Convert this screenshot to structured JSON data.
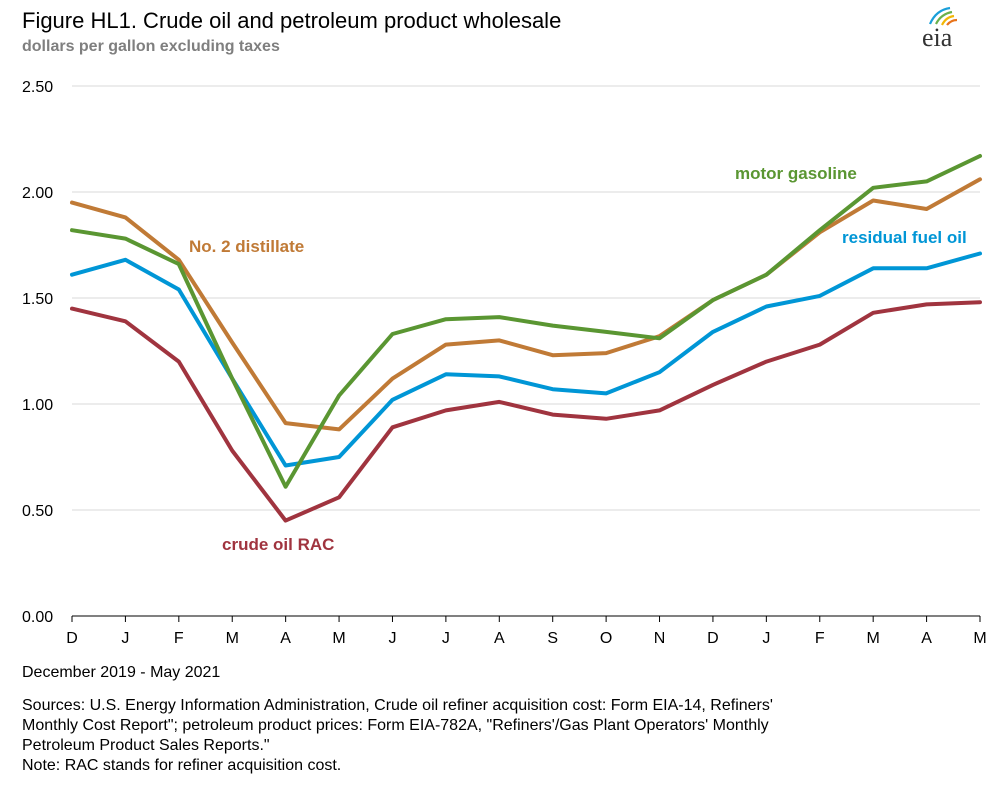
{
  "title": "Figure HL1.  Crude oil and petroleum product wholesale",
  "subtitle": "dollars per gallon excluding taxes",
  "logo_text": "eia",
  "period": "December 2019 - May 2021",
  "sources": [
    "Sources:  U.S. Energy Information Administration, Crude oil refiner acquisition cost:  Form EIA-14, Refiners'",
    "Monthly  Cost Report\"; petroleum product prices:  Form EIA-782A, \"Refiners'/Gas Plant Operators' Monthly",
    "Petroleum Product Sales Reports.\"",
    "Note:  RAC stands for refiner acquisition cost."
  ],
  "chart_data": {
    "type": "line",
    "categories": [
      "D",
      "J",
      "F",
      "M",
      "A",
      "M",
      "J",
      "J",
      "A",
      "S",
      "O",
      "N",
      "D",
      "J",
      "F",
      "M",
      "A",
      "M"
    ],
    "ylim": [
      0,
      2.5
    ],
    "yticks": [
      "0.00",
      "0.50",
      "1.00",
      "1.50",
      "2.00",
      "2.50"
    ],
    "grid": true,
    "series": [
      {
        "name": "motor gasoline",
        "color": "#5a9632",
        "values": [
          1.82,
          1.78,
          1.66,
          1.12,
          0.61,
          1.04,
          1.33,
          1.4,
          1.41,
          1.37,
          1.34,
          1.31,
          1.49,
          1.61,
          1.82,
          2.02,
          2.05,
          2.17
        ]
      },
      {
        "name": "No. 2 distillate",
        "color": "#c07a36",
        "values": [
          1.95,
          1.88,
          1.68,
          1.29,
          0.91,
          0.88,
          1.12,
          1.28,
          1.3,
          1.23,
          1.24,
          1.32,
          1.49,
          1.61,
          1.81,
          1.96,
          1.92,
          2.06
        ]
      },
      {
        "name": "residual fuel oil",
        "color": "#0096d6",
        "values": [
          1.61,
          1.68,
          1.54,
          1.12,
          0.71,
          0.75,
          1.02,
          1.14,
          1.13,
          1.07,
          1.05,
          1.15,
          1.34,
          1.46,
          1.51,
          1.64,
          1.64,
          1.71
        ]
      },
      {
        "name": "crude oil RAC",
        "color": "#a0343f",
        "values": [
          1.45,
          1.39,
          1.2,
          0.78,
          0.45,
          0.56,
          0.89,
          0.97,
          1.01,
          0.95,
          0.93,
          0.97,
          1.09,
          1.2,
          1.28,
          1.43,
          1.47,
          1.48
        ]
      }
    ]
  }
}
